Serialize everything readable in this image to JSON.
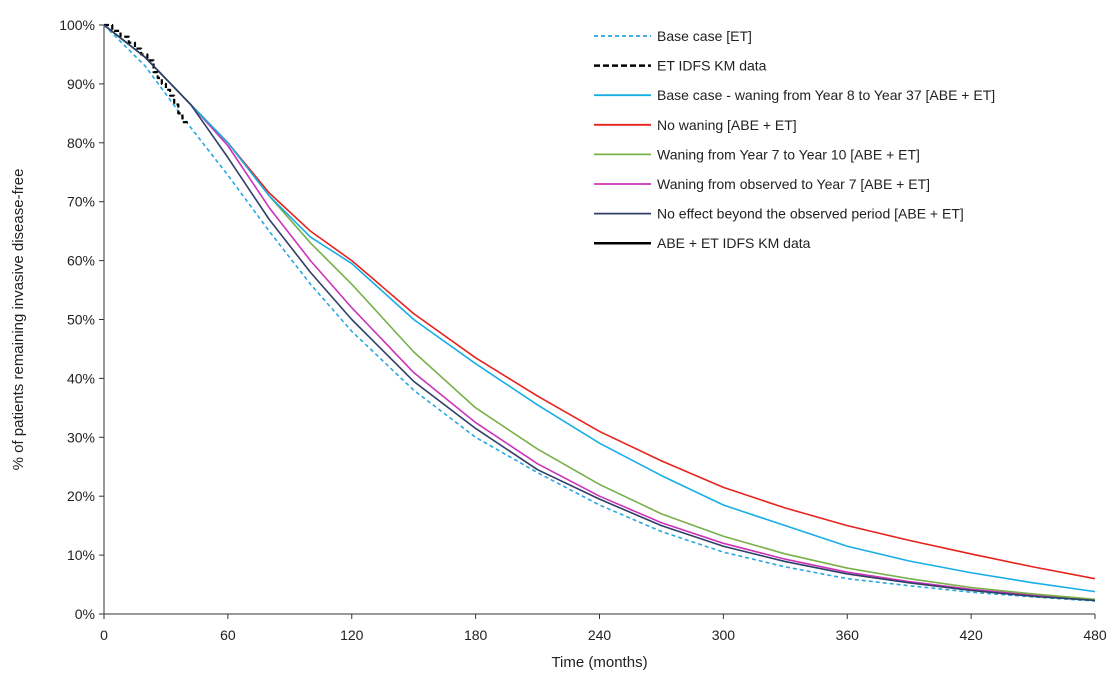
{
  "chart_data": {
    "type": "line",
    "title": "",
    "xlabel": "Time (months)",
    "ylabel": "% of patients remaining invasive disease-free",
    "xlim": [
      0,
      480
    ],
    "ylim": [
      0,
      100
    ],
    "x_ticks": [
      0,
      60,
      120,
      180,
      240,
      300,
      360,
      420,
      480
    ],
    "y_ticks": [
      0,
      10,
      20,
      30,
      40,
      50,
      60,
      70,
      80,
      90,
      100
    ],
    "y_tick_labels": [
      "0%",
      "10%",
      "20%",
      "30%",
      "40%",
      "50%",
      "60%",
      "70%",
      "80%",
      "90%",
      "100%"
    ],
    "grid": false,
    "legend_position": "top-right",
    "series": [
      {
        "name": "Base case [ET]",
        "color": "#29a8e0",
        "dash": "dashed",
        "step": false,
        "points": [
          [
            0,
            100
          ],
          [
            20,
            93
          ],
          [
            40,
            83.5
          ],
          [
            60,
            74.5
          ],
          [
            80,
            65
          ],
          [
            100,
            56
          ],
          [
            120,
            48
          ],
          [
            150,
            38
          ],
          [
            180,
            30
          ],
          [
            210,
            24
          ],
          [
            240,
            18.5
          ],
          [
            270,
            14
          ],
          [
            300,
            10.5
          ],
          [
            330,
            8
          ],
          [
            360,
            6
          ],
          [
            390,
            4.8
          ],
          [
            420,
            3.7
          ],
          [
            450,
            2.9
          ],
          [
            480,
            2.2
          ]
        ]
      },
      {
        "name": "ET IDFS KM data",
        "color": "#000000",
        "dash": "dashed",
        "step": true,
        "points": [
          [
            0,
            100
          ],
          [
            4,
            99
          ],
          [
            8,
            98
          ],
          [
            12,
            97
          ],
          [
            15,
            96
          ],
          [
            18,
            95
          ],
          [
            21,
            94
          ],
          [
            24,
            92
          ],
          [
            26,
            91
          ],
          [
            28,
            90
          ],
          [
            30,
            89
          ],
          [
            32,
            88
          ],
          [
            34,
            86.5
          ],
          [
            36,
            85
          ],
          [
            38,
            83.5
          ],
          [
            42,
            83.5
          ]
        ]
      },
      {
        "name": "Base case - waning from Year 8 to Year 37 [ABE + ET]",
        "color": "#17aee8",
        "dash": "solid",
        "step": false,
        "points": [
          [
            0,
            100
          ],
          [
            20,
            94.5
          ],
          [
            42,
            86.5
          ],
          [
            60,
            80
          ],
          [
            80,
            71
          ],
          [
            100,
            64
          ],
          [
            120,
            59.5
          ],
          [
            150,
            50
          ],
          [
            180,
            42.5
          ],
          [
            210,
            35.5
          ],
          [
            240,
            29
          ],
          [
            270,
            23.5
          ],
          [
            300,
            18.5
          ],
          [
            330,
            15
          ],
          [
            360,
            11.5
          ],
          [
            390,
            9
          ],
          [
            420,
            7
          ],
          [
            450,
            5.3
          ],
          [
            480,
            3.8
          ]
        ]
      },
      {
        "name": "No waning [ABE + ET]",
        "color": "#e8221d",
        "dash": "solid",
        "step": false,
        "points": [
          [
            0,
            100
          ],
          [
            20,
            94.5
          ],
          [
            42,
            86.5
          ],
          [
            60,
            80
          ],
          [
            80,
            71.5
          ],
          [
            100,
            65
          ],
          [
            120,
            60
          ],
          [
            150,
            51
          ],
          [
            180,
            43.5
          ],
          [
            210,
            37
          ],
          [
            240,
            31
          ],
          [
            270,
            26
          ],
          [
            300,
            21.5
          ],
          [
            330,
            18
          ],
          [
            360,
            15
          ],
          [
            390,
            12.5
          ],
          [
            420,
            10.2
          ],
          [
            450,
            8
          ],
          [
            480,
            6
          ]
        ]
      },
      {
        "name": "Waning from Year 7 to Year 10 [ABE + ET]",
        "color": "#78b04a",
        "dash": "solid",
        "step": false,
        "points": [
          [
            0,
            100
          ],
          [
            20,
            94.5
          ],
          [
            42,
            86.5
          ],
          [
            60,
            80
          ],
          [
            80,
            71
          ],
          [
            100,
            63
          ],
          [
            120,
            56
          ],
          [
            150,
            44.5
          ],
          [
            180,
            35
          ],
          [
            210,
            28
          ],
          [
            240,
            22
          ],
          [
            270,
            17
          ],
          [
            300,
            13.2
          ],
          [
            330,
            10.2
          ],
          [
            360,
            7.8
          ],
          [
            390,
            6
          ],
          [
            420,
            4.5
          ],
          [
            450,
            3.4
          ],
          [
            480,
            2.5
          ]
        ]
      },
      {
        "name": "Waning from observed to Year 7 [ABE + ET]",
        "color": "#cc33bb",
        "dash": "solid",
        "step": false,
        "points": [
          [
            0,
            100
          ],
          [
            20,
            94.5
          ],
          [
            42,
            86.5
          ],
          [
            60,
            79.5
          ],
          [
            80,
            69
          ],
          [
            100,
            60
          ],
          [
            120,
            52
          ],
          [
            150,
            41
          ],
          [
            180,
            32.5
          ],
          [
            210,
            25.5
          ],
          [
            240,
            20
          ],
          [
            270,
            15.5
          ],
          [
            300,
            12
          ],
          [
            330,
            9.3
          ],
          [
            360,
            7.1
          ],
          [
            390,
            5.5
          ],
          [
            420,
            4.2
          ],
          [
            450,
            3.2
          ],
          [
            480,
            2.4
          ]
        ]
      },
      {
        "name": "No effect beyond the observed period [ABE + ET]",
        "color": "#2f3f66",
        "dash": "solid",
        "step": false,
        "points": [
          [
            0,
            100
          ],
          [
            20,
            94.5
          ],
          [
            42,
            86.5
          ],
          [
            60,
            77.5
          ],
          [
            80,
            67
          ],
          [
            100,
            58
          ],
          [
            120,
            50
          ],
          [
            150,
            39.5
          ],
          [
            180,
            31.5
          ],
          [
            210,
            24.5
          ],
          [
            240,
            19.5
          ],
          [
            270,
            15
          ],
          [
            300,
            11.5
          ],
          [
            330,
            8.9
          ],
          [
            360,
            6.8
          ],
          [
            390,
            5.3
          ],
          [
            420,
            4
          ],
          [
            450,
            3
          ],
          [
            480,
            2.3
          ]
        ]
      },
      {
        "name": "ABE + ET IDFS KM data",
        "color": "#000000",
        "dash": "solid",
        "step": true,
        "points": [
          [
            0,
            100
          ],
          [
            4,
            99
          ],
          [
            8,
            98
          ],
          [
            12,
            97
          ],
          [
            15,
            96
          ],
          [
            18,
            95.5
          ],
          [
            21,
            95
          ],
          [
            24,
            94
          ],
          [
            26,
            93
          ],
          [
            28,
            92
          ],
          [
            30,
            91
          ],
          [
            33,
            90
          ],
          [
            36,
            89
          ],
          [
            39,
            88.5
          ],
          [
            44,
            88.5
          ]
        ]
      }
    ]
  }
}
